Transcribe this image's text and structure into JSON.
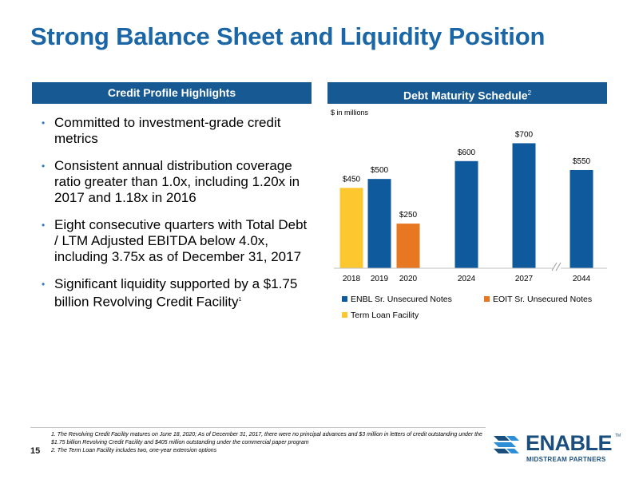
{
  "title": "Strong Balance Sheet and Liquidity Position",
  "left_panel": {
    "header": "Credit Profile Highlights",
    "bullets": [
      {
        "text": "Committed to investment-grade credit metrics",
        "sup": ""
      },
      {
        "text": "Consistent annual distribution coverage ratio greater than 1.0x, including 1.20x in 2017 and 1.18x in 2016",
        "sup": ""
      },
      {
        "text": "Eight consecutive quarters with Total Debt / LTM Adjusted EBITDA below 4.0x, including 3.75x as of December 31, 2017",
        "sup": ""
      },
      {
        "text": "Significant liquidity supported by a $1.75 billion Revolving Credit Facility",
        "sup": "1"
      }
    ]
  },
  "right_panel": {
    "header": "Debt Maturity Schedule",
    "header_sup": "2"
  },
  "chart_data": {
    "type": "bar",
    "unit_label": "$ in millions",
    "categories": [
      "2018",
      "2019",
      "2020",
      "2024",
      "2027",
      "2044"
    ],
    "series": [
      {
        "name": "ENBL Sr. Unsecured Notes",
        "color": "#0f5a9c",
        "values": [
          null,
          500,
          null,
          600,
          700,
          550
        ]
      },
      {
        "name": "EOIT Sr. Unsecured Notes",
        "color": "#e87722",
        "values": [
          null,
          null,
          250,
          null,
          null,
          null
        ]
      },
      {
        "name": "Term Loan Facility",
        "color": "#fdc82f",
        "values": [
          450,
          null,
          null,
          null,
          null,
          null
        ]
      }
    ],
    "data_labels": [
      "$450",
      "$500",
      "$250",
      "$600",
      "$700",
      "$550"
    ],
    "ylim": [
      0,
      760
    ],
    "axis_break_between": [
      "2027",
      "2044"
    ],
    "grid": false,
    "legend_position": "bottom"
  },
  "footnotes": [
    "1.  The Revolving Credit Facility matures on June 18, 2020; As of December 31, 2017, there were no principal advances and $3 million in letters of credit outstanding under the $1.75 billion Revolving Credit Facility and $405 million outstanding under the commercial paper program",
    "2.  The Term Loan Facility includes two, one-year extension options"
  ],
  "page_number": "15",
  "logo": {
    "word": "ENABLE",
    "tm": "TM",
    "sub": "MIDSTREAM PARTNERS",
    "colors": {
      "primary": "#1a4e7e",
      "accent": "#2f8fd6"
    }
  }
}
